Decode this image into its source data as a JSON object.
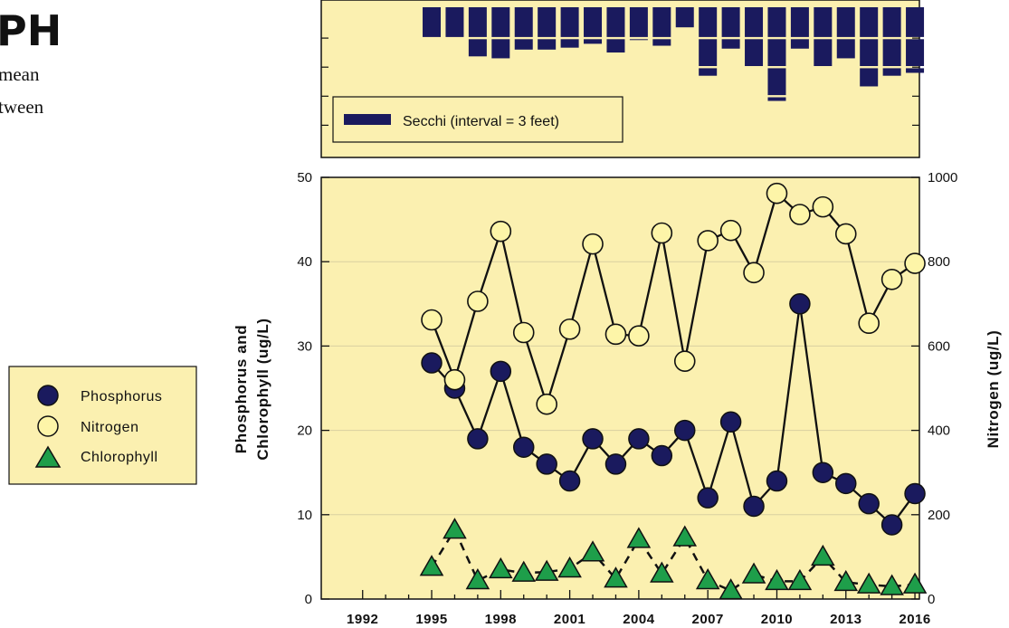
{
  "page": {
    "title_fragment": "PH",
    "desc_line1": "mean",
    "desc_line2": "tween"
  },
  "colors": {
    "panel_bg": "#fbf0b0",
    "secchi_bar": "#1a1a5e",
    "phosphorus": "#1a1a5e",
    "nitrogen": "#fdf5a8",
    "chlorophyll": "#1e9e4a",
    "line": "#111111",
    "grid": "#d9d0a0"
  },
  "legend": {
    "phosphorus": "Phosphorus",
    "nitrogen": "Nitrogen",
    "chlorophyll": "Chlorophyll"
  },
  "secchi_legend": "Secchi (interval = 3 feet)",
  "chart_data": [
    {
      "type": "bar",
      "series": [
        {
          "name": "Secchi (interval = 3 feet)",
          "x": [
            1995,
            1996,
            1997,
            1998,
            1999,
            2000,
            2001,
            2002,
            2003,
            2004,
            2005,
            2006,
            2007,
            2008,
            2009,
            2010,
            2011,
            2012,
            2013,
            2014,
            2015,
            2016
          ],
          "values": [
            3.2,
            3.2,
            5.0,
            5.2,
            4.3,
            4.3,
            4.1,
            3.7,
            4.6,
            3.3,
            3.9,
            2.0,
            7.0,
            4.2,
            6.1,
            9.6,
            4.2,
            6.2,
            5.2,
            8.1,
            7.0,
            6.7
          ]
        }
      ],
      "ylim": [
        12,
        0
      ],
      "xlim": [
        1991,
        2017
      ]
    },
    {
      "type": "line",
      "ylabel": "Phosphorus and Chlorophyll (ug/L)",
      "y2label": "Nitrogen (ug/L)",
      "ylim": [
        0,
        50
      ],
      "y2lim": [
        0,
        1000
      ],
      "yticks": [
        0,
        10,
        20,
        30,
        40,
        50
      ],
      "y2ticks": [
        0,
        200,
        400,
        600,
        800,
        1000
      ],
      "xticks": [
        1992,
        1995,
        1998,
        2001,
        2004,
        2007,
        2010,
        2013,
        2016
      ],
      "xlim": [
        1991,
        2017
      ],
      "grid": true,
      "series": [
        {
          "name": "Phosphorus",
          "axis": "left",
          "x": [
            1995,
            1996,
            1997,
            1998,
            1999,
            2000,
            2001,
            2002,
            2003,
            2004,
            2005,
            2006,
            2007,
            2008,
            2009,
            2010,
            2011,
            2012,
            2013,
            2014,
            2015,
            2016
          ],
          "y": [
            28,
            25,
            19,
            27,
            18,
            16,
            14,
            19,
            16,
            19,
            17,
            20,
            12,
            21,
            11,
            14,
            35,
            15,
            13.7,
            11.3,
            8.8,
            12.5
          ]
        },
        {
          "name": "Nitrogen",
          "axis": "right",
          "x": [
            1995,
            1996,
            1997,
            1998,
            1999,
            2000,
            2001,
            2002,
            2003,
            2004,
            2005,
            2006,
            2007,
            2008,
            2009,
            2010,
            2011,
            2012,
            2013,
            2014,
            2015,
            2016
          ],
          "y": [
            662,
            520,
            706,
            872,
            632,
            462,
            640,
            842,
            628,
            624,
            868,
            564,
            850,
            874,
            774,
            962,
            912,
            930,
            866,
            654,
            758,
            796
          ]
        },
        {
          "name": "Chlorophyll",
          "axis": "left",
          "x": [
            1995,
            1996,
            1997,
            1998,
            1999,
            2000,
            2001,
            2002,
            2003,
            2004,
            2005,
            2006,
            2007,
            2008,
            2009,
            2010,
            2011,
            2012,
            2013,
            2014,
            2015,
            2016
          ],
          "y": [
            3.8,
            8.2,
            2.2,
            3.5,
            3.1,
            3.2,
            3.6,
            5.5,
            2.4,
            7.1,
            3.0,
            7.3,
            2.2,
            1.0,
            2.9,
            2.1,
            2.1,
            5.0,
            2.0,
            1.7,
            1.5,
            1.7
          ]
        }
      ]
    }
  ]
}
